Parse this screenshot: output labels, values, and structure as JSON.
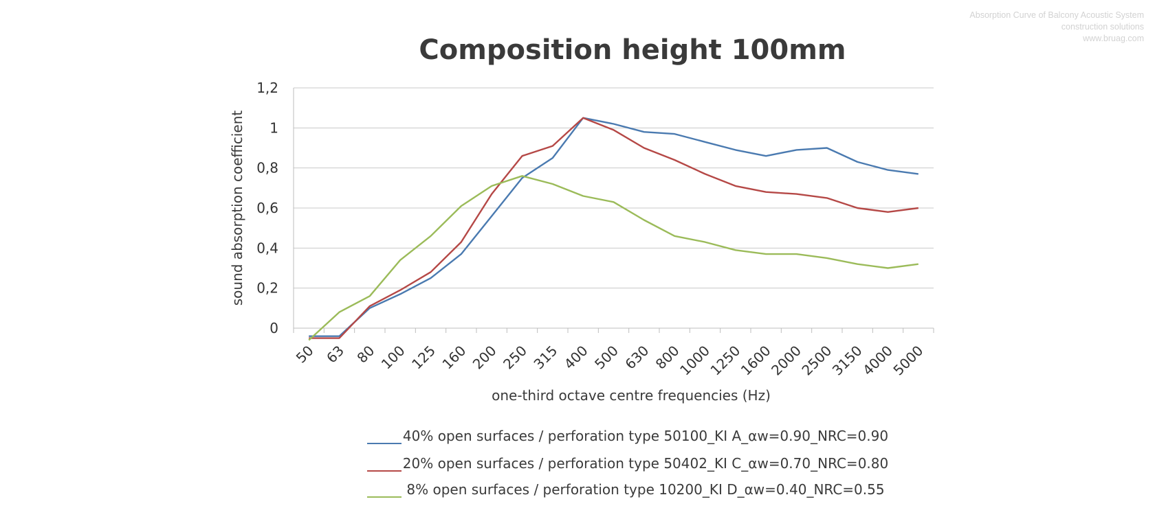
{
  "watermark": {
    "line1": "Absorption Curve of Balcony Acoustic System",
    "line2": "construction solutions",
    "line3": "www.bruag.com"
  },
  "chart_data": {
    "type": "line",
    "title": "Composition height  100mm",
    "xlabel": "one-third octave centre frequencies  (Hz)",
    "ylabel": "sound absorption coefficient",
    "ylim": [
      0,
      1.2
    ],
    "yticks": [
      "0",
      "0,2",
      "0,4",
      "0,6",
      "0,8",
      "1",
      "1,2"
    ],
    "ytick_values": [
      0,
      0.2,
      0.4,
      0.6,
      0.8,
      1.0,
      1.2
    ],
    "grid": true,
    "legend_position": "bottom-center",
    "categories": [
      "50",
      "63",
      "80",
      "100",
      "125",
      "160",
      "200",
      "250",
      "315",
      "400",
      "500",
      "630",
      "800",
      "1000",
      "1250",
      "1600",
      "2000",
      "2500",
      "3150",
      "4000",
      "5000"
    ],
    "series": [
      {
        "name": "40% open surfaces / perforation type 50100_KI A_αw=0.90_NRC=0.90",
        "color": "#4a7ab0",
        "values": [
          -0.04,
          -0.04,
          0.1,
          0.17,
          0.25,
          0.37,
          0.56,
          0.75,
          0.85,
          1.05,
          1.02,
          0.98,
          0.97,
          0.93,
          0.89,
          0.86,
          0.89,
          0.9,
          0.83,
          0.79,
          0.77
        ]
      },
      {
        "name": "20% open surfaces / perforation type 50402_KI C_αw=0.70_NRC=0.80",
        "color": "#b54846",
        "values": [
          -0.05,
          -0.05,
          0.11,
          0.19,
          0.28,
          0.43,
          0.67,
          0.86,
          0.91,
          1.05,
          0.99,
          0.9,
          0.84,
          0.77,
          0.71,
          0.68,
          0.67,
          0.65,
          0.6,
          0.58,
          0.6
        ]
      },
      {
        "name": "8% open surfaces / perforation type 10200_KI D_αw=0.40_NRC=0.55",
        "color": "#9bbb59",
        "values": [
          -0.06,
          0.08,
          0.16,
          0.34,
          0.46,
          0.61,
          0.71,
          0.76,
          0.72,
          0.66,
          0.63,
          0.54,
          0.46,
          0.43,
          0.39,
          0.37,
          0.37,
          0.35,
          0.32,
          0.3,
          0.32
        ]
      }
    ]
  }
}
